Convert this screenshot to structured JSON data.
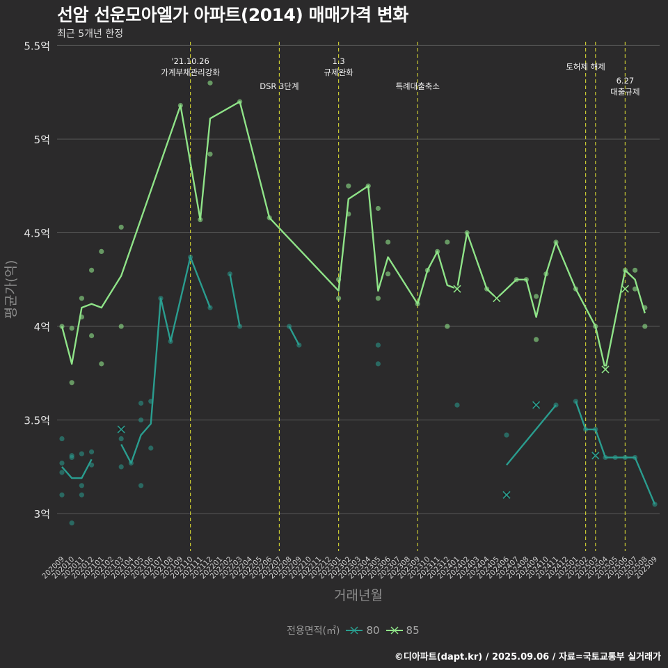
{
  "title": "선암 선운모아엘가 아파트(2014) 매매가격 변화",
  "subtitle": "최근 5개년 한정",
  "caption": "©디아파트(dapt.kr) / 2025.09.06 / 자료=국토교통부 실거래가",
  "legend": {
    "title": "전용면적(㎡)"
  },
  "colors": {
    "background": "#2b2a2b",
    "grid": "#595959",
    "vline": "#c8c832",
    "s80": "#2a9d8f",
    "s85": "#8fe388"
  },
  "chart_data": {
    "type": "line",
    "xlabel": "거래년월",
    "ylabel": "평균가(억)",
    "ylim": [
      2.8,
      5.52
    ],
    "yticks": [
      3,
      3.5,
      4,
      4.5,
      5,
      5.5
    ],
    "ytick_labels": [
      "3억",
      "3.5억",
      "4억",
      "4.5억",
      "5억",
      "5.5억"
    ],
    "grid": true,
    "legend_position": "bottom",
    "x": [
      "202009",
      "202010",
      "202011",
      "202012",
      "202101",
      "202102",
      "202103",
      "202104",
      "202105",
      "202106",
      "202107",
      "202108",
      "202109",
      "202110",
      "202111",
      "202112",
      "202201",
      "202202",
      "202203",
      "202204",
      "202205",
      "202206",
      "202207",
      "202208",
      "202209",
      "202210",
      "202211",
      "202212",
      "202301",
      "202302",
      "202303",
      "202304",
      "202305",
      "202306",
      "202307",
      "202308",
      "202309",
      "202310",
      "202311",
      "202312",
      "202401",
      "202402",
      "202403",
      "202404",
      "202405",
      "202406",
      "202407",
      "202408",
      "202409",
      "202410",
      "202411",
      "202412",
      "202501",
      "202502",
      "202503",
      "202504",
      "202505",
      "202506",
      "202507",
      "202508",
      "202509"
    ],
    "events": [
      {
        "x": "202110",
        "label": [
          "'21.10.26",
          "가계부채관리강화"
        ],
        "row": 0
      },
      {
        "x": "202207",
        "label": [
          "DSR 3단계"
        ],
        "row": 2
      },
      {
        "x": "202301",
        "label": [
          "1.3",
          "규제완화"
        ],
        "row": 0
      },
      {
        "x": "202309",
        "label": [
          "특례대출축소"
        ],
        "row": 2
      },
      {
        "x": "202502",
        "label": [
          "토허제 해제"
        ],
        "row": 1
      },
      {
        "x": "202503",
        "label": [],
        "row": 1
      },
      {
        "x": "202506",
        "label": [
          "6.27",
          "대출규제"
        ],
        "row": 3
      }
    ],
    "series": [
      {
        "name": "80",
        "line": [
          [
            "202009",
            3.25
          ],
          [
            "202010",
            3.19
          ],
          [
            "202011",
            3.19
          ],
          [
            "202012",
            3.29
          ],
          null,
          [
            "202103",
            3.37
          ],
          [
            "202104",
            3.27
          ],
          [
            "202105",
            3.42
          ],
          [
            "202106",
            3.48
          ],
          [
            "202107",
            4.15
          ],
          [
            "202108",
            3.92
          ],
          [
            "202110",
            4.37
          ],
          [
            "202112",
            4.1
          ],
          null,
          [
            "202202",
            4.28
          ],
          [
            "202203",
            4.0
          ],
          null,
          [
            "202208",
            4.0
          ],
          [
            "202209",
            3.9
          ],
          null,
          [
            "202406",
            3.26
          ],
          [
            "202411",
            3.58
          ],
          null,
          [
            "202501",
            3.6
          ],
          [
            "202502",
            3.45
          ],
          [
            "202503",
            3.45
          ],
          [
            "202504",
            3.3
          ],
          [
            "202505",
            3.3
          ],
          [
            "202506",
            3.3
          ],
          [
            "202507",
            3.3
          ],
          [
            "202509",
            3.05
          ]
        ],
        "points": [
          [
            "202009",
            3.4
          ],
          [
            "202009",
            3.27
          ],
          [
            "202009",
            3.22
          ],
          [
            "202009",
            3.1
          ],
          [
            "202010",
            3.31
          ],
          [
            "202010",
            3.3
          ],
          [
            "202010",
            2.95
          ],
          [
            "202011",
            3.32
          ],
          [
            "202011",
            3.15
          ],
          [
            "202011",
            3.1
          ],
          [
            "202012",
            3.33
          ],
          [
            "202012",
            3.26
          ],
          [
            "202103",
            3.4
          ],
          [
            "202103",
            3.25
          ],
          [
            "202104",
            3.27
          ],
          [
            "202105",
            3.59
          ],
          [
            "202105",
            3.5
          ],
          [
            "202105",
            3.15
          ],
          [
            "202106",
            3.6
          ],
          [
            "202106",
            3.35
          ],
          [
            "202107",
            4.15
          ],
          [
            "202108",
            3.92
          ],
          [
            "202110",
            4.37
          ],
          [
            "202112",
            4.1
          ],
          [
            "202202",
            4.28
          ],
          [
            "202203",
            4.0
          ],
          [
            "202208",
            4.0
          ],
          [
            "202209",
            3.9
          ],
          [
            "202305",
            3.9
          ],
          [
            "202305",
            3.8
          ],
          [
            "202401",
            3.58
          ],
          [
            "202406",
            3.42
          ],
          [
            "202411",
            3.58
          ],
          [
            "202501",
            3.6
          ],
          [
            "202502",
            3.45
          ],
          [
            "202503",
            3.45
          ],
          [
            "202504",
            3.3
          ],
          [
            "202505",
            3.3
          ],
          [
            "202506",
            3.3
          ],
          [
            "202507",
            3.3
          ],
          [
            "202509",
            3.05
          ]
        ],
        "crosses": [
          [
            "202103",
            3.45
          ],
          [
            "202406",
            3.1
          ],
          [
            "202409",
            3.58
          ],
          [
            "202503",
            3.31
          ]
        ]
      },
      {
        "name": "85",
        "line": [
          [
            "202009",
            4.0
          ],
          [
            "202010",
            3.8
          ],
          [
            "202011",
            4.1
          ],
          [
            "202012",
            4.12
          ],
          [
            "202101",
            4.1
          ],
          [
            "202103",
            4.27
          ],
          [
            "202109",
            5.18
          ],
          [
            "202111",
            4.57
          ],
          [
            "202112",
            5.11
          ],
          [
            "202203",
            5.2
          ],
          [
            "202206",
            4.58
          ],
          [
            "202301",
            4.19
          ],
          [
            "202302",
            4.68
          ],
          [
            "202304",
            4.75
          ],
          [
            "202305",
            4.19
          ],
          [
            "202306",
            4.37
          ],
          [
            "202309",
            4.12
          ],
          [
            "202310",
            4.3
          ],
          [
            "202311",
            4.4
          ],
          [
            "202312",
            4.22
          ],
          [
            "202401",
            4.2
          ],
          [
            "202402",
            4.5
          ],
          [
            "202404",
            4.2
          ],
          [
            "202405",
            4.15
          ],
          [
            "202407",
            4.25
          ],
          [
            "202408",
            4.25
          ],
          [
            "202409",
            4.05
          ],
          [
            "202410",
            4.28
          ],
          [
            "202411",
            4.45
          ],
          [
            "202501",
            4.2
          ],
          [
            "202503",
            4.0
          ],
          [
            "202504",
            3.77
          ],
          [
            "202506",
            4.3
          ],
          [
            "202507",
            4.25
          ],
          [
            "202508",
            4.07
          ]
        ],
        "points": [
          [
            "202009",
            4.0
          ],
          [
            "202010",
            3.99
          ],
          [
            "202010",
            3.7
          ],
          [
            "202011",
            4.15
          ],
          [
            "202011",
            4.05
          ],
          [
            "202012",
            4.3
          ],
          [
            "202012",
            3.95
          ],
          [
            "202101",
            4.4
          ],
          [
            "202101",
            3.8
          ],
          [
            "202103",
            4.53
          ],
          [
            "202103",
            4.0
          ],
          [
            "202109",
            5.18
          ],
          [
            "202111",
            4.57
          ],
          [
            "202112",
            5.3
          ],
          [
            "202112",
            4.92
          ],
          [
            "202203",
            5.2
          ],
          [
            "202206",
            4.58
          ],
          [
            "202301",
            4.25
          ],
          [
            "202301",
            4.15
          ],
          [
            "202302",
            4.75
          ],
          [
            "202302",
            4.6
          ],
          [
            "202304",
            4.75
          ],
          [
            "202305",
            4.63
          ],
          [
            "202305",
            4.15
          ],
          [
            "202306",
            4.45
          ],
          [
            "202306",
            4.28
          ],
          [
            "202309",
            4.12
          ],
          [
            "202310",
            4.3
          ],
          [
            "202311",
            4.4
          ],
          [
            "202312",
            4.45
          ],
          [
            "202312",
            4.0
          ],
          [
            "202402",
            4.5
          ],
          [
            "202404",
            4.2
          ],
          [
            "202407",
            4.25
          ],
          [
            "202408",
            4.25
          ],
          [
            "202409",
            4.16
          ],
          [
            "202409",
            3.93
          ],
          [
            "202410",
            4.28
          ],
          [
            "202411",
            4.45
          ],
          [
            "202501",
            4.2
          ],
          [
            "202503",
            4.0
          ],
          [
            "202506",
            4.3
          ],
          [
            "202507",
            4.3
          ],
          [
            "202507",
            4.2
          ],
          [
            "202508",
            4.1
          ],
          [
            "202508",
            4.0
          ]
        ],
        "crosses": [
          [
            "202401",
            4.2
          ],
          [
            "202405",
            4.15
          ],
          [
            "202504",
            3.77
          ],
          [
            "202506",
            4.2
          ]
        ]
      }
    ]
  }
}
